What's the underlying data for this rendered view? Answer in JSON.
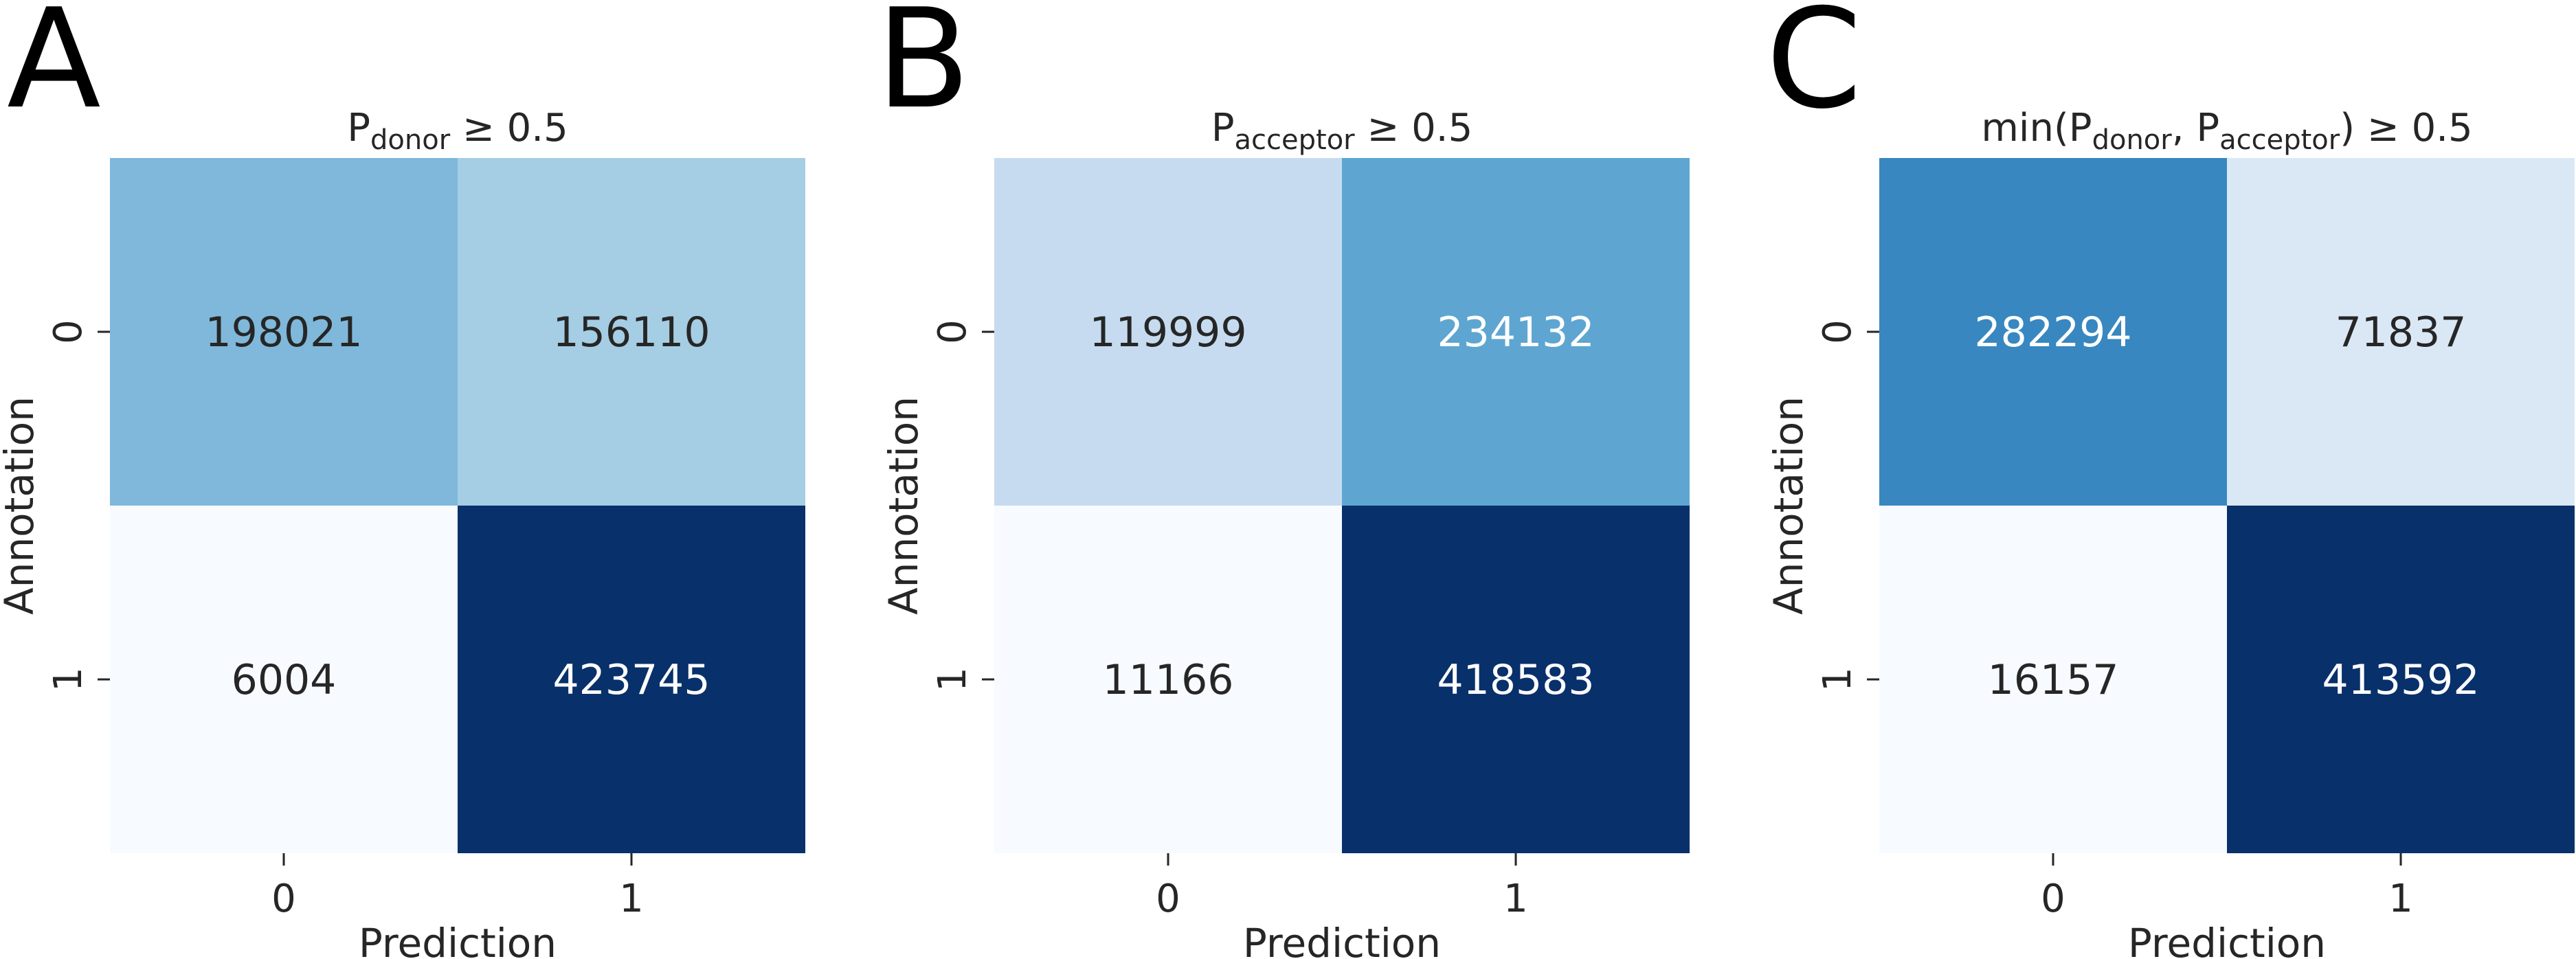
{
  "chart_data": [
    {
      "type": "heatmap",
      "panel_letter": "A",
      "title": {
        "pre": "P",
        "sub": "donor",
        "post": " ≥ 0.5"
      },
      "xlabel": "Prediction",
      "ylabel": "Annotation",
      "x_ticks": [
        "0",
        "1"
      ],
      "y_ticks": [
        "0",
        "1"
      ],
      "values": [
        [
          198021,
          156110
        ],
        [
          6004,
          423745
        ]
      ],
      "colors": [
        [
          "#7fb8da",
          "#a5cde3"
        ],
        [
          "#f7fbff",
          "#08306b"
        ]
      ],
      "text_colors": [
        [
          "#262626",
          "#262626"
        ],
        [
          "#262626",
          "#ffffff"
        ]
      ]
    },
    {
      "type": "heatmap",
      "panel_letter": "B",
      "title": {
        "pre": "P",
        "sub": "acceptor",
        "post": " ≥ 0.5"
      },
      "xlabel": "Prediction",
      "ylabel": "Annotation",
      "x_ticks": [
        "0",
        "1"
      ],
      "y_ticks": [
        "0",
        "1"
      ],
      "values": [
        [
          119999,
          234132
        ],
        [
          11166,
          418583
        ]
      ],
      "colors": [
        [
          "#c6dbef",
          "#5ea6d1"
        ],
        [
          "#f7fbff",
          "#08306b"
        ]
      ],
      "text_colors": [
        [
          "#262626",
          "#ffffff"
        ],
        [
          "#262626",
          "#ffffff"
        ]
      ]
    },
    {
      "type": "heatmap",
      "panel_letter": "C",
      "title": {
        "pre": "min(P",
        "sub": "donor",
        "mid": ", P",
        "sub2": "acceptor",
        "post": ") ≥ 0.5"
      },
      "xlabel": "Prediction",
      "ylabel": "Annotation",
      "x_ticks": [
        "0",
        "1"
      ],
      "y_ticks": [
        "0",
        "1"
      ],
      "values": [
        [
          282294,
          71837
        ],
        [
          16157,
          413592
        ]
      ],
      "colors": [
        [
          "#3887c0",
          "#dae8f6"
        ],
        [
          "#f7fbff",
          "#08306b"
        ]
      ],
      "text_colors": [
        [
          "#ffffff",
          "#262626"
        ],
        [
          "#262626",
          "#ffffff"
        ]
      ]
    }
  ]
}
